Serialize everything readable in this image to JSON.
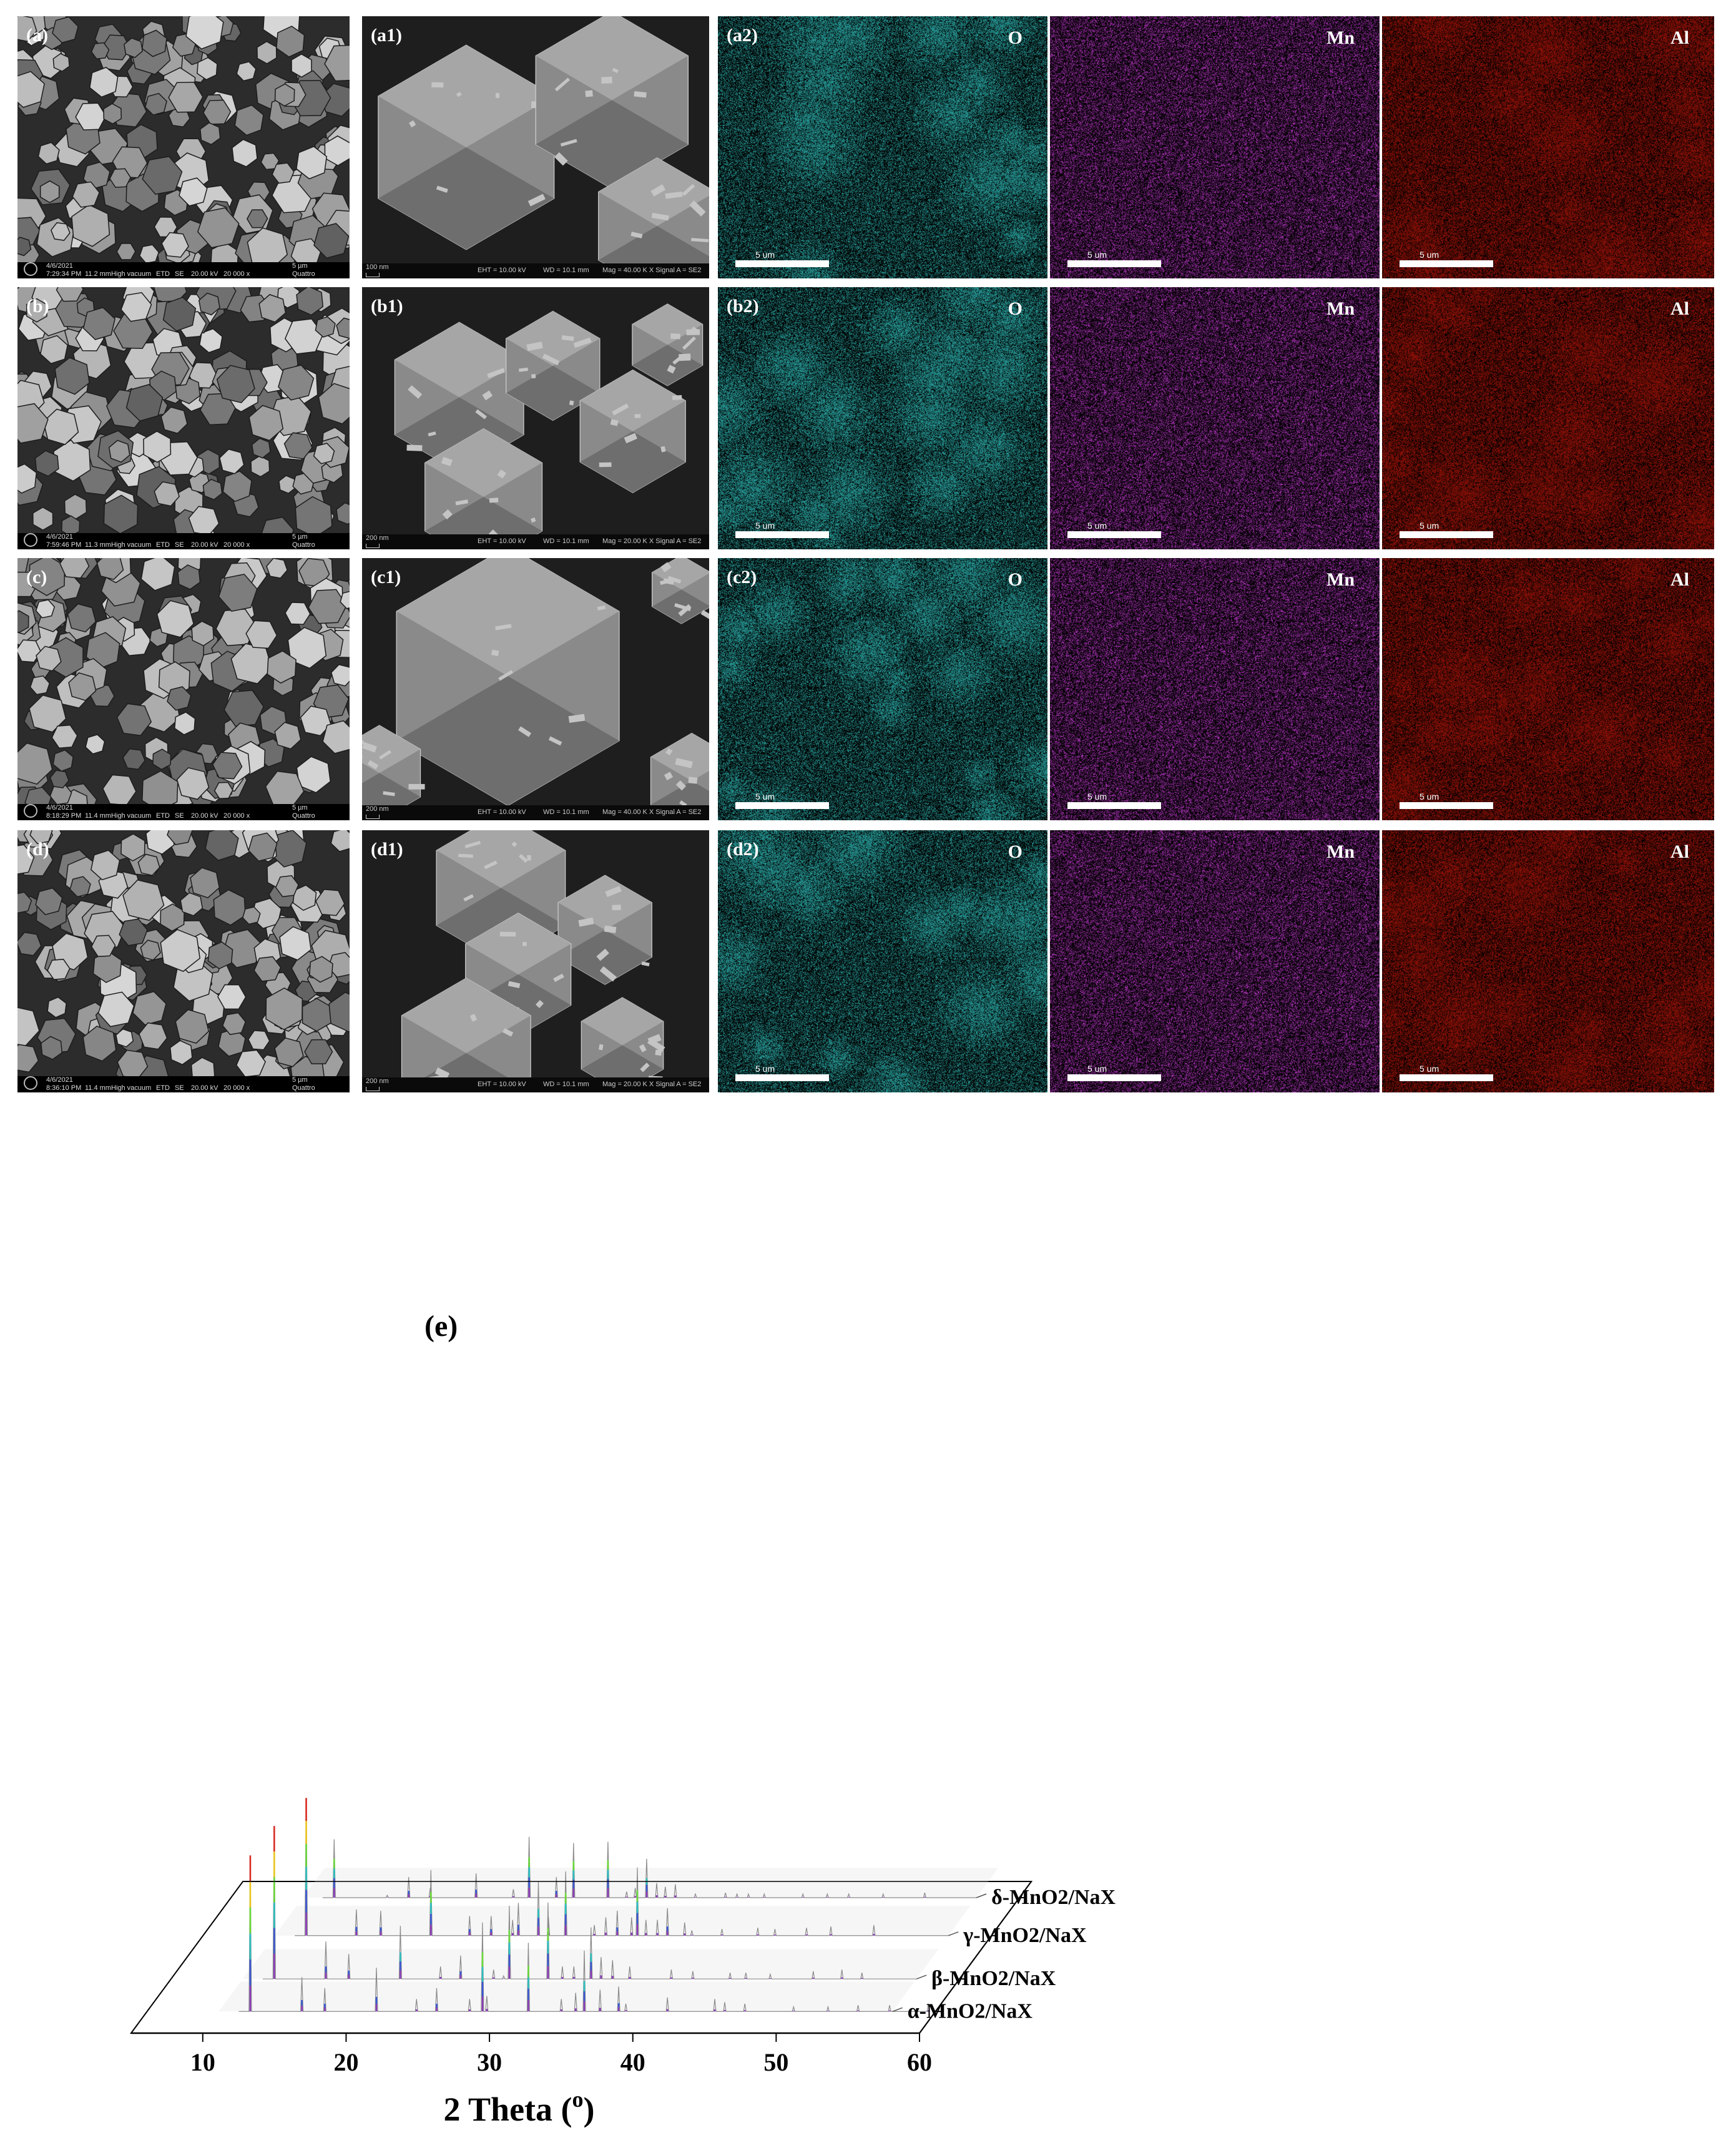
{
  "rows": [
    {
      "sem_label": "(a)",
      "zoom_label": "(a1)",
      "map_label": "(a2)",
      "sem_info": {
        "date": "4/6/2021",
        "time": "7:29:34 PM",
        "wd": "11.2 mm",
        "vac": "High vacuum",
        "det": "ETD",
        "mode": "SE",
        "hv": "20.00 kV",
        "mag": "20 000 x",
        "scale": "5 µm",
        "brand": "Quattro"
      },
      "zoom_info": {
        "scale": "100 nm",
        "eht": "EHT = 10.00 kV",
        "wd": "WD = 10.1 mm",
        "mag": "Mag = 40.00 K X  Signal A = SE2"
      }
    },
    {
      "sem_label": "(b)",
      "zoom_label": "(b1)",
      "map_label": "(b2)",
      "sem_info": {
        "date": "4/6/2021",
        "time": "7:59:46 PM",
        "wd": "11.3 mm",
        "vac": "High vacuum",
        "det": "ETD",
        "mode": "SE",
        "hv": "20.00 kV",
        "mag": "20 000 x",
        "scale": "5 µm",
        "brand": "Quattro"
      },
      "zoom_info": {
        "scale": "200 nm",
        "eht": "EHT = 10.00 kV",
        "wd": "WD = 10.1 mm",
        "mag": "Mag = 20.00 K X  Signal A = SE2"
      }
    },
    {
      "sem_label": "(c)",
      "zoom_label": "(c1)",
      "map_label": "(c2)",
      "sem_info": {
        "date": "4/6/2021",
        "time": "8:18:29 PM",
        "wd": "11.4 mm",
        "vac": "High vacuum",
        "det": "ETD",
        "mode": "SE",
        "hv": "20.00 kV",
        "mag": "20 000 x",
        "scale": "5 µm",
        "brand": "Quattro"
      },
      "zoom_info": {
        "scale": "200 nm",
        "eht": "EHT = 10.00 kV",
        "wd": "WD = 10.1 mm",
        "mag": "Mag = 40.00 K X  Signal A = SE2"
      }
    },
    {
      "sem_label": "(d)",
      "zoom_label": "(d1)",
      "map_label": "(d2)",
      "sem_info": {
        "date": "4/6/2021",
        "time": "8:36:10 PM",
        "wd": "11.4 mm",
        "vac": "High vacuum",
        "det": "ETD",
        "mode": "SE",
        "hv": "20.00 kV",
        "mag": "20 000 x",
        "scale": "5 µm",
        "brand": "Quattro"
      },
      "zoom_info": {
        "scale": "200 nm",
        "eht": "EHT = 10.00 kV",
        "wd": "WD = 10.1 mm",
        "mag": "Mag = 20.00 K X  Signal A = SE2"
      }
    }
  ],
  "elements": [
    {
      "symbol": "O",
      "color": "#2aa6a3"
    },
    {
      "symbol": "Mn",
      "color": "#c23ad0"
    },
    {
      "symbol": "Al",
      "color": "#9a1208"
    }
  ],
  "map_scale": "5 um",
  "chart_data": {
    "type": "line",
    "panel_label": "(e)",
    "xlabel": "2 Theta (°)",
    "xlabel_base": "2 Theta (",
    "xlabel_sup": "o",
    "xlabel_close": ")",
    "xlim": [
      5,
      60
    ],
    "xticks": [
      10,
      20,
      30,
      40,
      50,
      60
    ],
    "series": [
      {
        "name": "α-MnO2/NaX",
        "peaks": [
          [
            12.2,
            1.0
          ],
          [
            15.8,
            0.22
          ],
          [
            17.4,
            0.15
          ],
          [
            21.0,
            0.28
          ],
          [
            23.8,
            0.08
          ],
          [
            25.2,
            0.15
          ],
          [
            27.5,
            0.08
          ],
          [
            28.4,
            0.57
          ],
          [
            28.7,
            0.1
          ],
          [
            31.6,
            0.44
          ],
          [
            33.9,
            0.08
          ],
          [
            34.9,
            0.12
          ],
          [
            35.5,
            0.39
          ],
          [
            36.6,
            0.14
          ],
          [
            37.9,
            0.16
          ],
          [
            38.4,
            0.05
          ],
          [
            41.3,
            0.09
          ],
          [
            44.6,
            0.08
          ],
          [
            45.3,
            0.06
          ],
          [
            46.7,
            0.05
          ],
          [
            50.1,
            0.03
          ],
          [
            52.5,
            0.03
          ],
          [
            54.6,
            0.04
          ],
          [
            56.8,
            0.04
          ],
          [
            59.5,
            0.05
          ]
        ]
      },
      {
        "name": "β-MnO2/NaX",
        "peaks": [
          [
            12.2,
            0.98
          ],
          [
            15.8,
            0.24
          ],
          [
            17.4,
            0.16
          ],
          [
            21.0,
            0.34
          ],
          [
            23.8,
            0.08
          ],
          [
            25.2,
            0.15
          ],
          [
            27.5,
            0.06
          ],
          [
            28.2,
            0.02
          ],
          [
            28.6,
            0.47
          ],
          [
            31.3,
            0.49
          ],
          [
            32.3,
            0.08
          ],
          [
            33.1,
            0.08
          ],
          [
            34.3,
            0.33
          ],
          [
            35.0,
            0.14
          ],
          [
            35.8,
            0.12
          ],
          [
            37.0,
            0.08
          ],
          [
            39.9,
            0.06
          ],
          [
            41.4,
            0.05
          ],
          [
            44.0,
            0.04
          ],
          [
            45.1,
            0.04
          ],
          [
            46.8,
            0.03
          ],
          [
            49.8,
            0.05
          ],
          [
            51.8,
            0.06
          ],
          [
            53.2,
            0.04
          ]
        ]
      },
      {
        "name": "γ-MnO2/NaX",
        "peaks": [
          [
            12.2,
            1.05
          ],
          [
            15.7,
            0.2
          ],
          [
            17.4,
            0.19
          ],
          [
            20.9,
            0.5
          ],
          [
            23.6,
            0.15
          ],
          [
            25.1,
            0.15
          ],
          [
            26.6,
            0.12
          ],
          [
            27.0,
            0.25
          ],
          [
            28.4,
            0.41
          ],
          [
            29.1,
            0.14
          ],
          [
            30.3,
            0.49
          ],
          [
            32.3,
            0.08
          ],
          [
            33.1,
            0.14
          ],
          [
            33.9,
            0.19
          ],
          [
            34.9,
            0.14
          ],
          [
            35.3,
            0.52
          ],
          [
            35.9,
            0.12
          ],
          [
            36.7,
            0.12
          ],
          [
            37.4,
            0.21
          ],
          [
            38.6,
            0.1
          ],
          [
            39.1,
            0.04
          ],
          [
            41.2,
            0.05
          ],
          [
            43.7,
            0.06
          ],
          [
            44.9,
            0.05
          ],
          [
            47.1,
            0.06
          ],
          [
            48.8,
            0.07
          ],
          [
            51.8,
            0.08
          ]
        ]
      },
      {
        "name": "δ-MnO2/NaX",
        "peaks": [
          [
            12.2,
            0.48
          ],
          [
            15.9,
            0.02
          ],
          [
            17.4,
            0.17
          ],
          [
            18.9,
            0.08
          ],
          [
            22.1,
            0.2
          ],
          [
            24.7,
            0.07
          ],
          [
            25.8,
            0.5
          ],
          [
            27.7,
            0.17
          ],
          [
            28.9,
            0.45
          ],
          [
            31.3,
            0.46
          ],
          [
            32.6,
            0.05
          ],
          [
            33.2,
            0.08
          ],
          [
            34.0,
            0.32
          ],
          [
            34.7,
            0.12
          ],
          [
            35.3,
            0.09
          ],
          [
            36.0,
            0.11
          ],
          [
            37.4,
            0.03
          ],
          [
            39.5,
            0.04
          ],
          [
            40.3,
            0.03
          ],
          [
            41.1,
            0.03
          ],
          [
            42.2,
            0.03
          ],
          [
            44.9,
            0.03
          ],
          [
            46.6,
            0.03
          ],
          [
            48.1,
            0.03
          ],
          [
            50.5,
            0.03
          ],
          [
            53.4,
            0.04
          ]
        ]
      }
    ]
  }
}
